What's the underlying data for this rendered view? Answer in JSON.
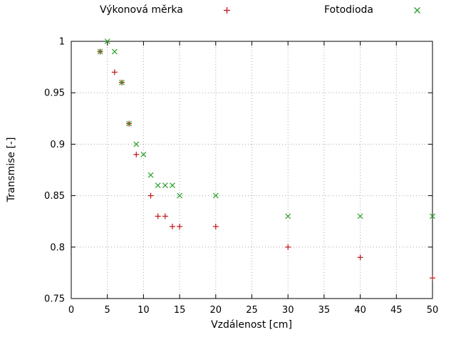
{
  "chart_data": {
    "type": "scatter",
    "title": "",
    "xlabel": "Vzdálenost [cm]",
    "ylabel": "Transmise [-]",
    "xlim": [
      0,
      50
    ],
    "ylim": [
      0.75,
      1.0
    ],
    "xticks": [
      0,
      5,
      10,
      15,
      20,
      25,
      30,
      35,
      40,
      45,
      50
    ],
    "xtick_labels": [
      "0",
      "5",
      "10",
      "15",
      "20",
      "25",
      "30",
      "35",
      "40",
      "45",
      "50"
    ],
    "yticks": [
      0.75,
      0.8,
      0.85,
      0.9,
      0.95,
      1
    ],
    "ytick_labels": [
      "0.75",
      "0.8",
      "0.85",
      "0.9",
      "0.95",
      "1"
    ],
    "grid": true,
    "grid_color": "#a8a8a8",
    "axis_color": "#000000",
    "legend_position": "top-outside",
    "series": [
      {
        "name": "Výkonová měrka",
        "marker": "plus",
        "color": "#c01414",
        "points": [
          [
            4,
            0.99
          ],
          [
            6,
            0.97
          ],
          [
            7,
            0.96
          ],
          [
            8,
            0.92
          ],
          [
            9,
            0.89
          ],
          [
            11,
            0.85
          ],
          [
            12,
            0.83
          ],
          [
            13,
            0.83
          ],
          [
            14,
            0.82
          ],
          [
            15,
            0.82
          ],
          [
            20,
            0.82
          ],
          [
            30,
            0.8
          ],
          [
            40,
            0.79
          ],
          [
            50,
            0.77
          ]
        ]
      },
      {
        "name": "Fotodioda",
        "marker": "cross",
        "color": "#2ca02c",
        "points": [
          [
            4,
            0.99
          ],
          [
            5,
            1
          ],
          [
            6,
            0.99
          ],
          [
            7,
            0.96
          ],
          [
            8,
            0.92
          ],
          [
            9,
            0.9
          ],
          [
            10,
            0.89
          ],
          [
            11,
            0.87
          ],
          [
            12,
            0.86
          ],
          [
            13,
            0.86
          ],
          [
            14,
            0.86
          ],
          [
            15,
            0.85
          ],
          [
            20,
            0.85
          ],
          [
            30,
            0.83
          ],
          [
            40,
            0.83
          ],
          [
            50,
            0.83
          ]
        ]
      }
    ]
  }
}
